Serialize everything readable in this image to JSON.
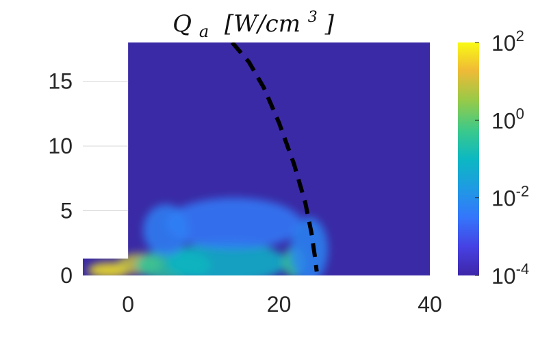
{
  "chart_data": {
    "type": "heatmap",
    "title": {
      "symbol": "Q",
      "subscript": "a",
      "unit_open": "[W/cm",
      "unit_exp": "3",
      "unit_close": "]"
    },
    "xlabel": "",
    "ylabel": "",
    "xlim": [
      -6,
      40
    ],
    "ylim": [
      0,
      18
    ],
    "x_ticks": [
      {
        "value": 0,
        "label": "0"
      },
      {
        "value": 20,
        "label": "20"
      },
      {
        "value": 40,
        "label": "40"
      }
    ],
    "y_ticks": [
      {
        "value": 0,
        "label": "0"
      },
      {
        "value": 5,
        "label": "5"
      },
      {
        "value": 10,
        "label": "10"
      },
      {
        "value": 15,
        "label": "15"
      }
    ],
    "grid": true,
    "background_value": 0.0001,
    "masked_region": {
      "x": [
        -6,
        0
      ],
      "y": [
        1.3,
        18
      ]
    },
    "heat_blobs": [
      {
        "x": -2.5,
        "y": 0.4,
        "sx": 2.8,
        "sy": 0.6,
        "value": 60
      },
      {
        "x": 1.5,
        "y": 0.9,
        "sx": 3.0,
        "sy": 0.8,
        "value": 8
      },
      {
        "x": 6,
        "y": 0.8,
        "sx": 5.0,
        "sy": 1.2,
        "value": 0.3
      },
      {
        "x": 13,
        "y": 1.0,
        "sx": 8.0,
        "sy": 1.6,
        "value": 0.08
      },
      {
        "x": 22,
        "y": 1.0,
        "sx": 1.5,
        "sy": 1.2,
        "value": 0.4
      },
      {
        "x": 14,
        "y": 4.0,
        "sx": 9.0,
        "sy": 2.0,
        "value": 0.004
      },
      {
        "x": 24,
        "y": 2.0,
        "sx": 2.5,
        "sy": 2.5,
        "value": 0.006
      },
      {
        "x": 5,
        "y": 3.5,
        "sx": 3.0,
        "sy": 2.0,
        "value": 0.005
      }
    ],
    "dashed_curve": {
      "x": [
        13.8,
        16,
        18,
        20,
        22,
        23.5,
        24.3,
        24.8,
        25.0
      ],
      "y": [
        18,
        16.5,
        14.5,
        11.8,
        8.6,
        5.6,
        3.3,
        1.3,
        0.3
      ]
    },
    "colorbar": {
      "scale": "log",
      "range": [
        0.0001,
        100
      ],
      "ticks": [
        {
          "value": 100,
          "base": "10",
          "exp": "2"
        },
        {
          "value": 1,
          "base": "10",
          "exp": "0"
        },
        {
          "value": 0.01,
          "base": "10",
          "exp": "-2"
        },
        {
          "value": 0.0001,
          "base": "10",
          "exp": "-4"
        }
      ]
    },
    "colors": {
      "low": "#3d26a8",
      "background_cell": "#3a2aa5",
      "curve": "#000000",
      "mask": "#ffffff"
    }
  }
}
